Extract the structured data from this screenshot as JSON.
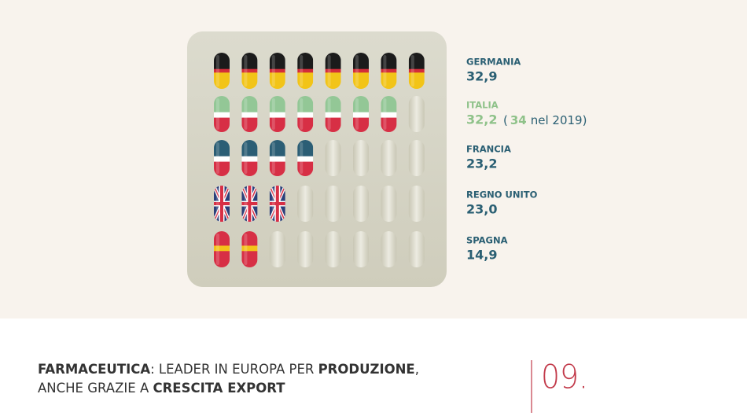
{
  "countries": [
    {
      "name": "GERMANIA",
      "value": "32,9",
      "pills": 8,
      "flag": "de"
    },
    {
      "name": "ITALIA",
      "value": "32,2",
      "pills": 7,
      "flag": "it",
      "note": {
        "open": "(",
        "value": "34",
        "text": "nel 2019)"
      }
    },
    {
      "name": "FRANCIA",
      "value": "23,2",
      "pills": 4,
      "flag": "fr"
    },
    {
      "name": "REGNO UNITO",
      "value": "23,0",
      "pills": 3,
      "flag": "uk"
    },
    {
      "name": "SPAGNA",
      "value": "14,9",
      "pills": 2,
      "flag": "es"
    }
  ],
  "footer": {
    "title_bold": "FARMACEUTICA",
    "title_text": ": LEADER IN EUROPA PER ",
    "title_bold2": "PRODUZIONE",
    "title_end": ",",
    "line2_text": "ANCHE GRAZIE A ",
    "line2_bold": "CRESCITA EXPORT",
    "page": "09."
  }
}
